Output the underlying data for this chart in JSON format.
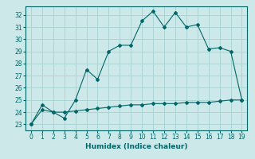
{
  "title": "",
  "xlabel": "Humidex (Indice chaleur)",
  "ylabel": "",
  "bg_color": "#cce8e8",
  "grid_color": "#aad4d4",
  "line_color": "#006868",
  "xlim": [
    -0.5,
    19.5
  ],
  "ylim": [
    22.5,
    32.7
  ],
  "xticks": [
    0,
    1,
    2,
    3,
    4,
    5,
    6,
    7,
    8,
    9,
    10,
    11,
    12,
    13,
    14,
    15,
    16,
    17,
    18,
    19
  ],
  "yticks": [
    23,
    24,
    25,
    26,
    27,
    28,
    29,
    30,
    31,
    32
  ],
  "series1_x": [
    0,
    1,
    2,
    3,
    4,
    5,
    6,
    7,
    8,
    9,
    10,
    11,
    12,
    13,
    14,
    15,
    16,
    17,
    18,
    19
  ],
  "series1_y": [
    23.0,
    24.6,
    24.0,
    23.5,
    25.0,
    27.5,
    26.7,
    29.0,
    29.5,
    29.5,
    31.5,
    32.3,
    31.0,
    32.2,
    31.0,
    31.2,
    29.2,
    29.3,
    29.0,
    25.0
  ],
  "series2_x": [
    0,
    1,
    2,
    3,
    4,
    5,
    6,
    7,
    8,
    9,
    10,
    11,
    12,
    13,
    14,
    15,
    16,
    17,
    18,
    19
  ],
  "series2_y": [
    23.0,
    24.2,
    24.0,
    24.0,
    24.1,
    24.2,
    24.3,
    24.4,
    24.5,
    24.6,
    24.6,
    24.7,
    24.7,
    24.7,
    24.8,
    24.8,
    24.8,
    24.9,
    25.0,
    25.0
  ],
  "marker": "D",
  "markersize": 2.0,
  "linewidth": 0.8,
  "tick_fontsize": 5.5,
  "xlabel_fontsize": 6.5
}
